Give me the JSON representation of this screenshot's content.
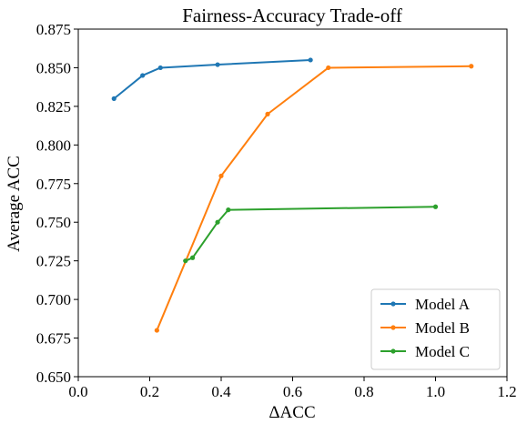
{
  "chart_data": {
    "type": "line",
    "title": "Fairness-Accuracy Trade-off",
    "xlabel": "ΔACC",
    "ylabel": "Average ACC",
    "xlim": [
      0.0,
      1.2
    ],
    "ylim": [
      0.65,
      0.875
    ],
    "xticks": [
      "0.0",
      "0.2",
      "0.4",
      "0.6",
      "0.8",
      "1.0",
      "1.2"
    ],
    "yticks": [
      "0.650",
      "0.675",
      "0.700",
      "0.725",
      "0.750",
      "0.775",
      "0.800",
      "0.825",
      "0.850",
      "0.875"
    ],
    "grid": false,
    "legend_position": "bottom-right",
    "series": [
      {
        "name": "Model A",
        "color": "#1f77b4",
        "x": [
          0.1,
          0.18,
          0.23,
          0.39,
          0.65
        ],
        "y": [
          0.83,
          0.845,
          0.85,
          0.852,
          0.855
        ]
      },
      {
        "name": "Model B",
        "color": "#ff7f0e",
        "x": [
          0.22,
          0.4,
          0.53,
          0.7,
          1.1
        ],
        "y": [
          0.68,
          0.78,
          0.82,
          0.85,
          0.851
        ]
      },
      {
        "name": "Model C",
        "color": "#2ca02c",
        "x": [
          0.3,
          0.32,
          0.39,
          0.42,
          1.0
        ],
        "y": [
          0.725,
          0.727,
          0.75,
          0.758,
          0.76
        ]
      }
    ]
  }
}
